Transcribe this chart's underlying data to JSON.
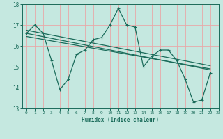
{
  "title": "",
  "xlabel": "Humidex (Indice chaleur)",
  "xlim": [
    -0.5,
    23
  ],
  "ylim": [
    13,
    18
  ],
  "yticks": [
    13,
    14,
    15,
    16,
    17,
    18
  ],
  "xticks": [
    0,
    1,
    2,
    3,
    4,
    5,
    6,
    7,
    8,
    9,
    10,
    11,
    12,
    13,
    14,
    15,
    16,
    17,
    18,
    19,
    20,
    21,
    22,
    23
  ],
  "bg_color": "#c5e8e0",
  "grid_color": "#e8a8a8",
  "line_color": "#1a6b5a",
  "main_x": [
    0,
    1,
    2,
    3,
    4,
    5,
    6,
    7,
    8,
    9,
    10,
    11,
    12,
    13,
    14,
    15,
    16,
    17,
    18,
    19,
    20,
    21,
    22
  ],
  "main_y": [
    16.6,
    17.0,
    16.6,
    15.3,
    13.9,
    14.4,
    15.6,
    15.8,
    16.3,
    16.4,
    17.0,
    17.8,
    17.0,
    16.9,
    15.0,
    15.5,
    15.8,
    15.8,
    15.3,
    14.4,
    13.3,
    13.4,
    14.7
  ],
  "trend1_x": [
    0,
    22
  ],
  "trend1_y": [
    16.75,
    15.05
  ],
  "trend2_x": [
    0,
    22
  ],
  "trend2_y": [
    16.6,
    14.85
  ],
  "trend3_x": [
    0,
    22
  ],
  "trend3_y": [
    16.45,
    14.9
  ]
}
